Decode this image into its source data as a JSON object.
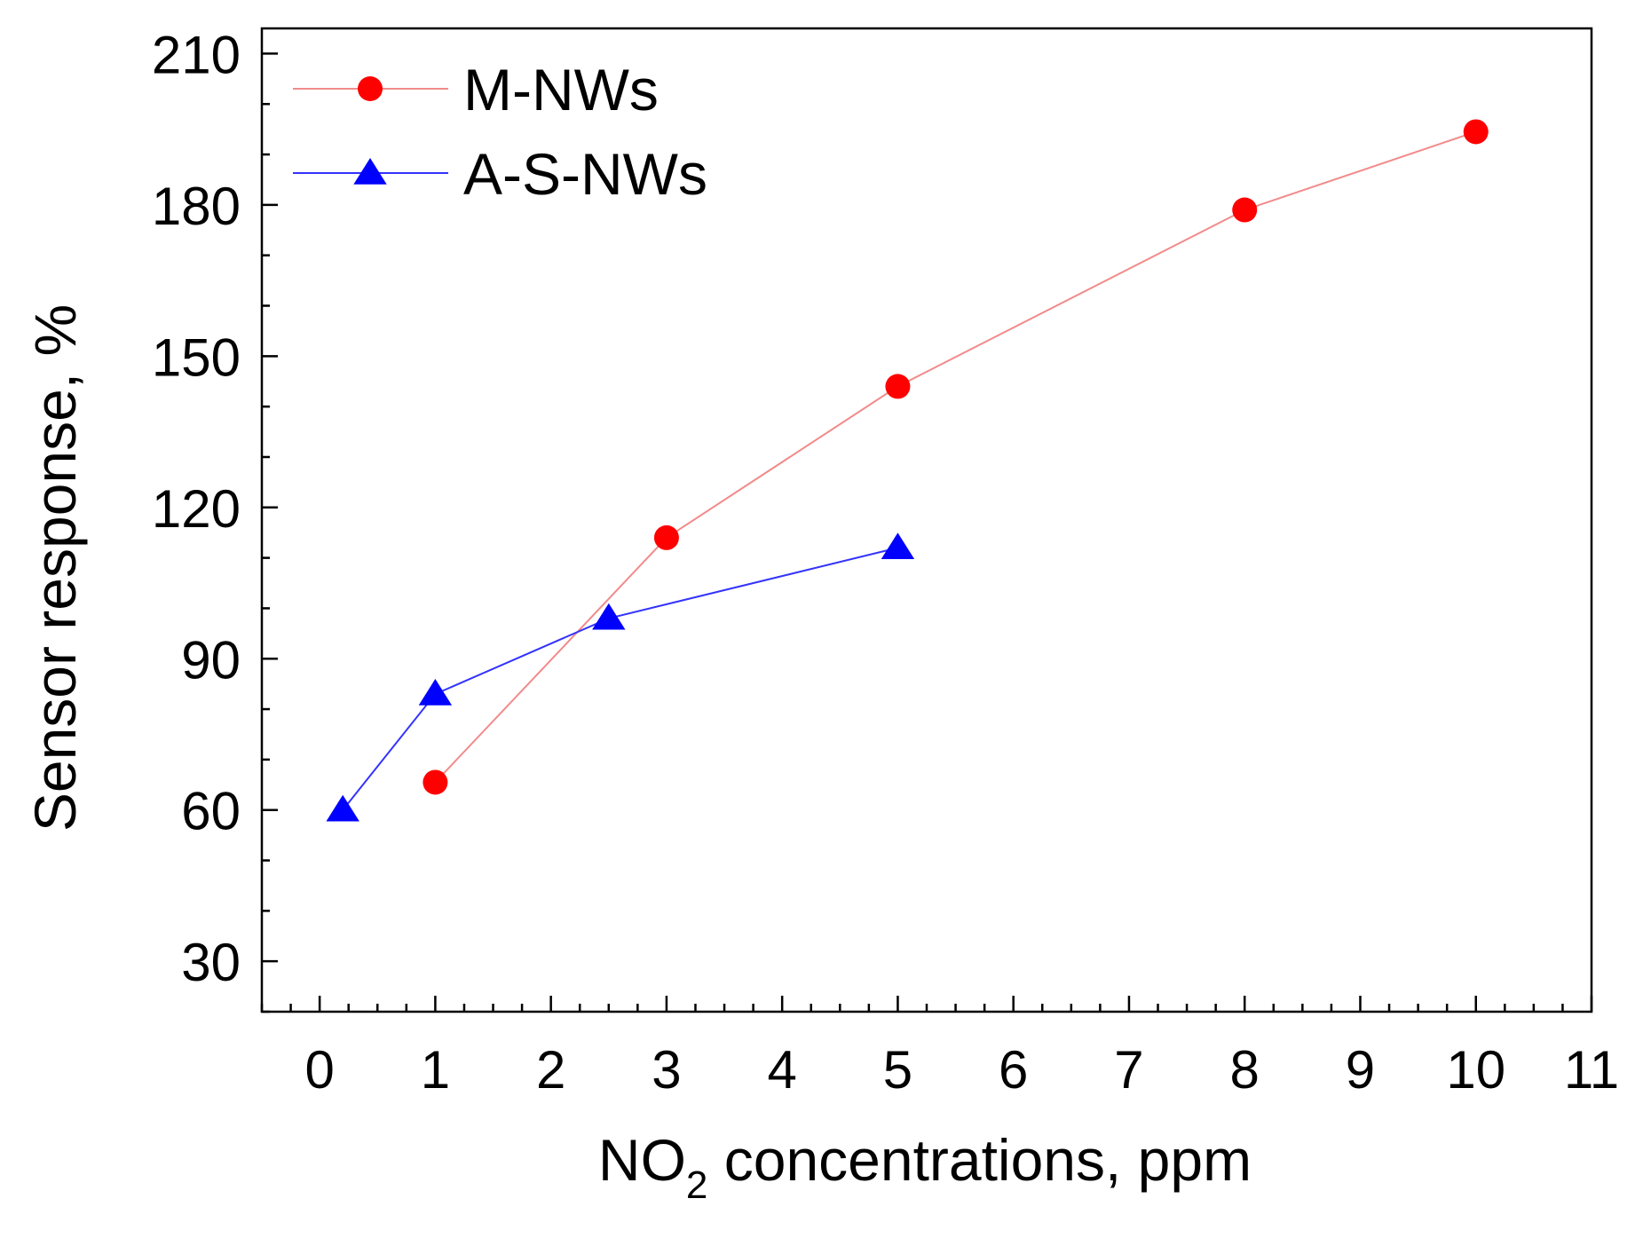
{
  "chart_data": {
    "type": "line",
    "title": "",
    "xlabel": {
      "prefix": "NO",
      "subscript": "2",
      "suffix": " concentrations, ppm"
    },
    "ylabel": "Sensor response, %",
    "xlim": [
      -0.5,
      11
    ],
    "ylim": [
      20,
      215
    ],
    "xticks": [
      0,
      1,
      2,
      3,
      4,
      5,
      6,
      7,
      8,
      9,
      10,
      11
    ],
    "yticks": [
      30,
      60,
      90,
      120,
      150,
      180,
      210
    ],
    "x_minor_step": 0.25,
    "y_minor_step": 10,
    "grid": false,
    "legend_position": "top-left",
    "series": [
      {
        "name": "M-NWs",
        "marker": "circle",
        "line_color": "#f28b8b",
        "marker_color": "#ff0000",
        "x": [
          1,
          3,
          5,
          8,
          10
        ],
        "y": [
          65.5,
          114,
          144,
          179,
          194.5
        ]
      },
      {
        "name": "A-S-NWs",
        "marker": "triangle",
        "line_color": "#3333ff",
        "marker_color": "#0000ff",
        "x": [
          0.2,
          1,
          2.5,
          5
        ],
        "y": [
          60,
          83,
          98,
          112
        ]
      }
    ]
  }
}
